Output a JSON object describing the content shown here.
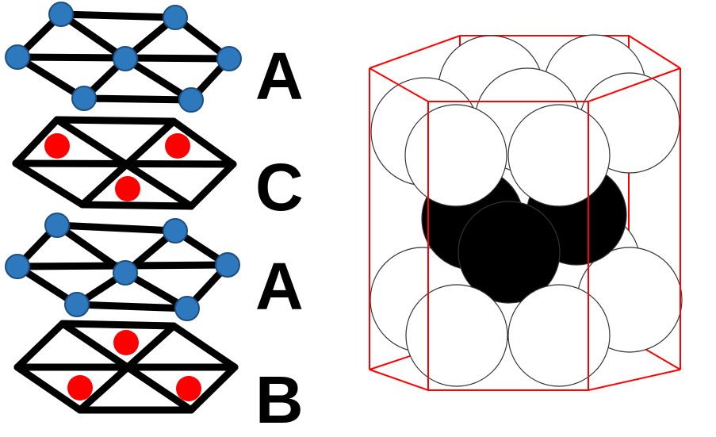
{
  "layers": [
    {
      "label": "A",
      "atom": "blue"
    },
    {
      "label": "C",
      "atom": "red"
    },
    {
      "label": "A",
      "atom": "blue"
    },
    {
      "label": "B",
      "atom": "red"
    }
  ],
  "colors": {
    "blue_atom": "#2e78bd",
    "blue_atom_stroke": "#1c4f80",
    "red_atom": "#ff0000",
    "lattice_line": "#000000",
    "cell_edge": "#ff0000",
    "sphere_white": "#ffffff",
    "sphere_black": "#000000",
    "sphere_outline": "#333333"
  }
}
